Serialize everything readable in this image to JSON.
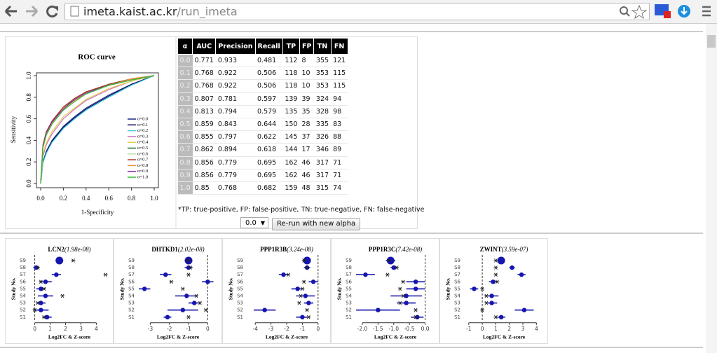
{
  "browser": {
    "url": {
      "host": "imeta.kaist.ac.kr",
      "path": "/run_imeta"
    }
  },
  "roc_chart": {
    "type": "line",
    "title": "ROC curve",
    "x_label": "1-Specificity",
    "y_label": "Sensitivity",
    "x": [
      0,
      0.02,
      0.05,
      0.1,
      0.2,
      0.3,
      0.4,
      0.6,
      0.8,
      1
    ],
    "xlim": [
      0,
      1
    ],
    "ylim": [
      0,
      1
    ],
    "xticks": [
      {
        "value": 0,
        "label": "0.0"
      },
      0.2,
      0.4,
      0.6,
      0.8,
      {
        "value": 1,
        "label": "1.0"
      }
    ],
    "yticks": [
      {
        "value": 0,
        "label": "0.0"
      },
      0.2,
      0.4,
      0.6,
      0.8,
      {
        "value": 1,
        "label": "1.0"
      }
    ],
    "series": [
      {
        "name": "α=0.0",
        "color": "#1a2a8a",
        "values": [
          0,
          0.2,
          0.3,
          0.4,
          0.53,
          0.62,
          0.7,
          0.82,
          0.92,
          1
        ]
      },
      {
        "name": "α=0.1",
        "color": "#101060",
        "values": [
          0,
          0.2,
          0.29,
          0.39,
          0.52,
          0.61,
          0.69,
          0.81,
          0.92,
          1
        ]
      },
      {
        "name": "α=0.2",
        "color": "#40d0e0",
        "values": [
          0,
          0.19,
          0.28,
          0.38,
          0.51,
          0.6,
          0.68,
          0.8,
          0.91,
          1
        ]
      },
      {
        "name": "α=0.3",
        "color": "#d070c0",
        "values": [
          0,
          0.25,
          0.36,
          0.46,
          0.6,
          0.69,
          0.77,
          0.87,
          0.95,
          1
        ]
      },
      {
        "name": "α=0.4",
        "color": "#e0d040",
        "values": [
          0,
          0.27,
          0.38,
          0.48,
          0.62,
          0.7,
          0.78,
          0.88,
          0.95,
          1
        ]
      },
      {
        "name": "α=0.5",
        "color": "#207030",
        "values": [
          0,
          0.35,
          0.47,
          0.57,
          0.7,
          0.78,
          0.84,
          0.92,
          0.97,
          1
        ]
      },
      {
        "name": "α=0.6",
        "color": "#c0e0a0",
        "values": [
          0,
          0.34,
          0.46,
          0.56,
          0.69,
          0.77,
          0.83,
          0.91,
          0.97,
          1
        ]
      },
      {
        "name": "α=0.7",
        "color": "#a03020",
        "values": [
          0,
          0.36,
          0.48,
          0.58,
          0.71,
          0.79,
          0.85,
          0.92,
          0.97,
          1
        ]
      },
      {
        "name": "α=0.8",
        "color": "#f09030",
        "values": [
          0,
          0.35,
          0.46,
          0.56,
          0.7,
          0.77,
          0.84,
          0.91,
          0.97,
          1
        ]
      },
      {
        "name": "α=0.9",
        "color": "#9030b0",
        "values": [
          0,
          0.34,
          0.47,
          0.57,
          0.69,
          0.78,
          0.84,
          0.91,
          0.96,
          1
        ]
      },
      {
        "name": "α=1.0",
        "color": "#30c030",
        "values": [
          0,
          0.33,
          0.45,
          0.55,
          0.68,
          0.76,
          0.83,
          0.91,
          0.96,
          1
        ]
      }
    ]
  },
  "table": {
    "columns": [
      "α",
      "AUC",
      "Precision",
      "Recall",
      "TP",
      "FP",
      "TN",
      "FN"
    ],
    "rows": [
      [
        "0.0",
        "0.771",
        "0.933",
        "0.481",
        "112",
        "8",
        "355",
        "121"
      ],
      [
        "0.1",
        "0.768",
        "0.922",
        "0.506",
        "118",
        "10",
        "353",
        "115"
      ],
      [
        "0.2",
        "0.768",
        "0.922",
        "0.506",
        "118",
        "10",
        "353",
        "115"
      ],
      [
        "0.3",
        "0.807",
        "0.781",
        "0.597",
        "139",
        "39",
        "324",
        "94"
      ],
      [
        "0.4",
        "0.813",
        "0.794",
        "0.579",
        "135",
        "35",
        "328",
        "98"
      ],
      [
        "0.5",
        "0.859",
        "0.843",
        "0.644",
        "150",
        "28",
        "335",
        "83"
      ],
      [
        "0.6",
        "0.855",
        "0.797",
        "0.622",
        "145",
        "37",
        "326",
        "88"
      ],
      [
        "0.7",
        "0.862",
        "0.894",
        "0.618",
        "144",
        "17",
        "346",
        "89"
      ],
      [
        "0.8",
        "0.856",
        "0.779",
        "0.695",
        "162",
        "46",
        "317",
        "71"
      ],
      [
        "0.9",
        "0.856",
        "0.779",
        "0.695",
        "162",
        "46",
        "317",
        "71"
      ],
      [
        "1.0",
        "0.85",
        "0.768",
        "0.682",
        "159",
        "48",
        "315",
        "74"
      ]
    ]
  },
  "footnote": "*TP: true-positive, FP: false-positive, TN: true-negative, FN: false-negative",
  "alpha_select": "0.0",
  "rerun_button": "Re-run with new alpha",
  "forest_plots": [
    {
      "type": "forest",
      "gene": "LCN2",
      "pvalue": "(1.98e-08)",
      "x_label": "Log2FC & Z-score",
      "y_label": "Study No.",
      "studies": [
        "S9",
        "S8",
        "S7",
        "S6",
        "S5",
        "S4",
        "S3",
        "S2",
        "S1"
      ],
      "estimates": [
        1.6,
        0.1,
        1.4,
        0.7,
        0.4,
        0.7,
        0.4,
        0.4,
        0.8
      ],
      "errors": [
        0.2,
        0.2,
        0.3,
        0.4,
        0.3,
        0.5,
        0.3,
        0.5,
        0.3
      ],
      "zscores": [
        2.5,
        0.2,
        4.6,
        0.4,
        0.6,
        1.8,
        0.2,
        0,
        0.6
      ],
      "xlim": [
        -0.3,
        4.8
      ],
      "xticks": [
        0,
        1,
        2,
        3,
        4
      ]
    },
    {
      "type": "forest",
      "gene": "DHTKD1",
      "pvalue": "(2.02e-08)",
      "x_label": "Log2FC & Z-score",
      "y_label": "Study No.",
      "studies": [
        "S9",
        "S8",
        "S7",
        "S6",
        "S5",
        "S4",
        "S3",
        "S2",
        "S1"
      ],
      "estimates": [
        -1.0,
        -1.0,
        -2.2,
        0,
        -3.3,
        -1.1,
        -0.7,
        -1.3,
        -2.1
      ],
      "errors": [
        0.2,
        0.2,
        0.3,
        0.3,
        0.3,
        0.6,
        0.3,
        0.8,
        0.2
      ],
      "zscores": [
        -1.0,
        -0.9,
        -1.0,
        -1.9,
        -1.3,
        -0.6,
        -0.4,
        -0.1,
        -1.0
      ],
      "xlim": [
        -3.6,
        0.5
      ],
      "xticks": [
        -3,
        -2,
        -1,
        0
      ]
    },
    {
      "type": "forest",
      "gene": "PPP1R3B",
      "pvalue": "(3.24e-08)",
      "x_label": "Log2FC & Z-score",
      "y_label": "Study No.",
      "studies": [
        "S9",
        "S8",
        "S7",
        "S6",
        "S5",
        "S4",
        "S3",
        "S2",
        "S1"
      ],
      "estimates": [
        -0.7,
        -0.7,
        -2.2,
        -0.3,
        -1.3,
        -0.8,
        -0.6,
        -3.4,
        -1.0
      ],
      "errors": [
        0.2,
        0.2,
        0.3,
        0.3,
        0.4,
        0.6,
        0.3,
        0.7,
        0.4
      ],
      "zscores": [
        -0.9,
        -0.7,
        -1.9,
        -0.9,
        -1.0,
        -1.1,
        -1.2,
        -0.7,
        -0.6
      ],
      "xlim": [
        -4.5,
        0.5
      ],
      "xticks": [
        -4,
        -3,
        -2,
        -1,
        0
      ]
    },
    {
      "type": "forest",
      "gene": "PPP1R3C",
      "pvalue": "(7.42e-08)",
      "x_label": "Log2FC & Z-score",
      "y_label": "Study No.",
      "studies": [
        "S9",
        "S8",
        "S7",
        "S6",
        "S5",
        "S4",
        "S3",
        "S2",
        "S1"
      ],
      "estimates": [
        -1.1,
        -1.0,
        -1.9,
        -0.3,
        -0.3,
        -0.6,
        -0.6,
        -1.5,
        -0.25
      ],
      "errors": [
        0.15,
        0.1,
        0.3,
        0.3,
        0.3,
        0.5,
        0.3,
        0.7,
        0.2
      ],
      "zscores": [
        -1.15,
        -0.9,
        -1.2,
        -0.7,
        -0.8,
        -0.7,
        -0.8,
        -0.3,
        -0.3
      ],
      "xlim": [
        -2.2,
        0.3
      ],
      "xticks": [
        {
          "value": -2,
          "label": "-2.0"
        },
        -1.5,
        {
          "value": -1,
          "label": "-1.0"
        },
        -0.5,
        {
          "value": 0,
          "label": "0.0"
        }
      ]
    },
    {
      "type": "forest",
      "gene": "ZWINT",
      "pvalue": "(3.59e-07)",
      "x_label": "Log2FC & Z-score",
      "y_label": "Study No.",
      "studies": [
        "S9",
        "S8",
        "S7",
        "S6",
        "S5",
        "S4",
        "S3",
        "S2",
        "S1"
      ],
      "estimates": [
        1.4,
        2.2,
        2.9,
        0.8,
        -0.6,
        0.7,
        0.7,
        3.1,
        1.4
      ],
      "errors": [
        0.2,
        0.2,
        0.3,
        0.3,
        0.3,
        0.5,
        0.4,
        0.7,
        0.3
      ],
      "zscores": [
        1.0,
        1.0,
        1.0,
        1.1,
        0,
        0.3,
        0.3,
        0,
        1.0
      ],
      "xlim": [
        -1.3,
        4.5
      ],
      "xticks": [
        -1,
        0,
        1,
        2,
        3,
        4
      ]
    }
  ]
}
